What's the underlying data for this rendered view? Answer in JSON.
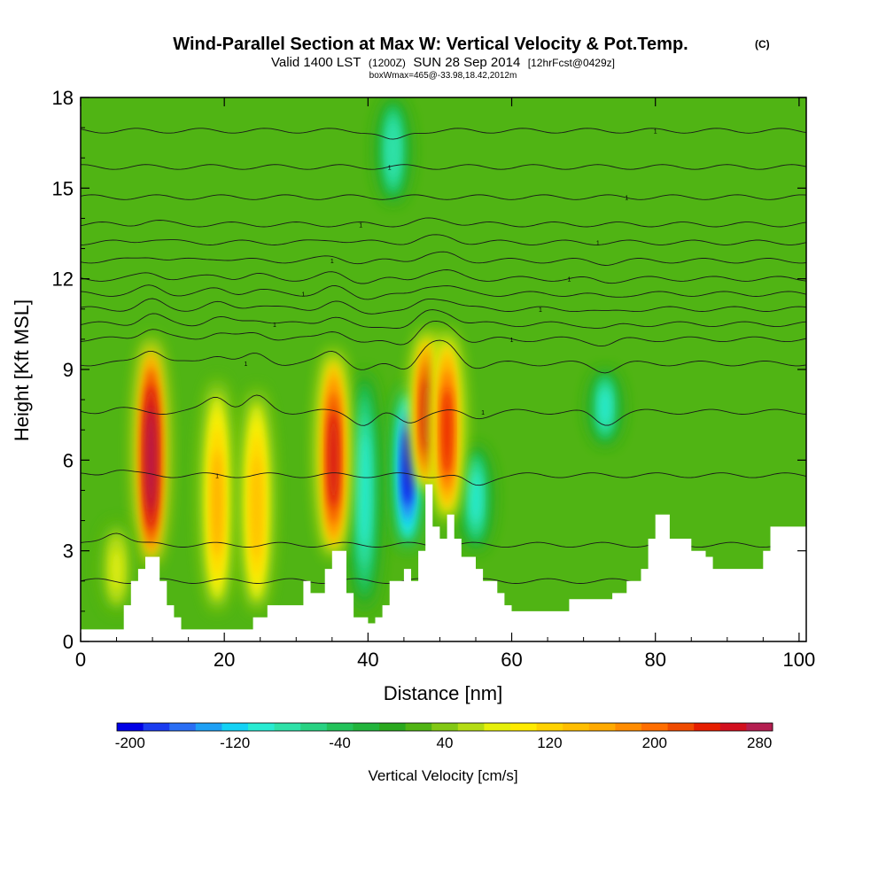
{
  "chart_data": {
    "type": "heatmap",
    "title": "Wind-Parallel Section at Max W: Vertical Velocity & Pot.Temp.",
    "title_mark": "(C)",
    "subtitle_main": "Valid 1400 LST",
    "subtitle_utc": "(1200Z)",
    "subtitle_date": "SUN 28 Sep 2014",
    "subtitle_fcst": "[12hrFcst@0429z]",
    "subtitle2": "boxWmax=465@-33.98,18.42,2012m",
    "xlabel": "Distance [nm]",
    "ylabel": "Height [Kft MSL]",
    "xlim": [
      0,
      101
    ],
    "ylim": [
      0,
      18
    ],
    "x_ticks": [
      0,
      20,
      40,
      60,
      80,
      100
    ],
    "y_ticks": [
      0,
      3,
      6,
      9,
      12,
      15,
      18
    ],
    "x_tick_labels": [
      "0",
      "20",
      "40",
      "60",
      "80",
      "100"
    ],
    "y_tick_labels": [
      "0",
      "3",
      "6",
      "9",
      "12",
      "15",
      "18"
    ],
    "background_w": 15,
    "updraft_cores": [
      {
        "x": 9.8,
        "z_low": 2.5,
        "z_high": 10.2,
        "w": 320
      },
      {
        "x": 19.0,
        "z_low": 1.0,
        "z_high": 8.8,
        "w": 150
      },
      {
        "x": 24.5,
        "z_low": 1.0,
        "z_high": 8.5,
        "w": 130
      },
      {
        "x": 35.2,
        "z_low": 2.8,
        "z_high": 9.8,
        "w": 260
      },
      {
        "x": 48.2,
        "z_low": 5.0,
        "z_high": 10.4,
        "w": 250
      },
      {
        "x": 51.0,
        "z_low": 4.0,
        "z_high": 10.4,
        "w": 230
      },
      {
        "x": 5.0,
        "z_low": 1.0,
        "z_high": 4.0,
        "w": 70
      }
    ],
    "downdraft_cores": [
      {
        "x": 45.5,
        "z_low": 3.0,
        "z_high": 8.5,
        "w": -200
      },
      {
        "x": 39.5,
        "z_low": 1.0,
        "z_high": 9.0,
        "w": -110
      },
      {
        "x": 55.0,
        "z_low": 3.0,
        "z_high": 6.5,
        "w": -100
      },
      {
        "x": 73.0,
        "z_low": 6.5,
        "z_high": 9.0,
        "w": -100
      },
      {
        "x": 43.5,
        "z_low": 14.5,
        "z_high": 18.0,
        "w": -90
      }
    ],
    "terrain_profile": [
      [
        0,
        0.4
      ],
      [
        6,
        0.4
      ],
      [
        6,
        1.2
      ],
      [
        7,
        1.2
      ],
      [
        7,
        2.0
      ],
      [
        8,
        2.0
      ],
      [
        8,
        2.4
      ],
      [
        9,
        2.4
      ],
      [
        9,
        2.8
      ],
      [
        11,
        2.8
      ],
      [
        11,
        2.0
      ],
      [
        12,
        2.0
      ],
      [
        12,
        1.2
      ],
      [
        13,
        1.2
      ],
      [
        13,
        0.8
      ],
      [
        14,
        0.8
      ],
      [
        14,
        0.4
      ],
      [
        24,
        0.4
      ],
      [
        24,
        0.8
      ],
      [
        26,
        0.8
      ],
      [
        26,
        1.2
      ],
      [
        31,
        1.2
      ],
      [
        31,
        2.0
      ],
      [
        32,
        2.0
      ],
      [
        32,
        1.6
      ],
      [
        34,
        1.6
      ],
      [
        34,
        2.4
      ],
      [
        35,
        2.4
      ],
      [
        35,
        3.0
      ],
      [
        37,
        3.0
      ],
      [
        37,
        1.6
      ],
      [
        38,
        1.6
      ],
      [
        38,
        0.8
      ],
      [
        40,
        0.8
      ],
      [
        40,
        0.6
      ],
      [
        41,
        0.6
      ],
      [
        41,
        0.8
      ],
      [
        42,
        0.8
      ],
      [
        42,
        1.2
      ],
      [
        43,
        1.2
      ],
      [
        43,
        2.0
      ],
      [
        45,
        2.0
      ],
      [
        45,
        2.4
      ],
      [
        46,
        2.4
      ],
      [
        46,
        2.0
      ],
      [
        47,
        2.0
      ],
      [
        47,
        3.0
      ],
      [
        48,
        3.0
      ],
      [
        48,
        5.2
      ],
      [
        49,
        5.2
      ],
      [
        49,
        3.8
      ],
      [
        50,
        3.8
      ],
      [
        50,
        3.4
      ],
      [
        51,
        3.4
      ],
      [
        51,
        4.2
      ],
      [
        52,
        4.2
      ],
      [
        52,
        3.4
      ],
      [
        53,
        3.4
      ],
      [
        53,
        2.8
      ],
      [
        55,
        2.8
      ],
      [
        55,
        2.4
      ],
      [
        56,
        2.4
      ],
      [
        56,
        2.0
      ],
      [
        58,
        2.0
      ],
      [
        58,
        1.6
      ],
      [
        59,
        1.6
      ],
      [
        59,
        1.2
      ],
      [
        60,
        1.2
      ],
      [
        60,
        1.0
      ],
      [
        68,
        1.0
      ],
      [
        68,
        1.4
      ],
      [
        74,
        1.4
      ],
      [
        74,
        1.6
      ],
      [
        76,
        1.6
      ],
      [
        76,
        2.0
      ],
      [
        78,
        2.0
      ],
      [
        78,
        2.4
      ],
      [
        79,
        2.4
      ],
      [
        79,
        3.4
      ],
      [
        80,
        3.4
      ],
      [
        80,
        4.2
      ],
      [
        82,
        4.2
      ],
      [
        82,
        3.4
      ],
      [
        85,
        3.4
      ],
      [
        85,
        3.0
      ],
      [
        87,
        3.0
      ],
      [
        87,
        2.8
      ],
      [
        88,
        2.8
      ],
      [
        88,
        2.4
      ],
      [
        95,
        2.4
      ],
      [
        95,
        3.0
      ],
      [
        96,
        3.0
      ],
      [
        96,
        3.8
      ],
      [
        101,
        3.8
      ]
    ],
    "isentropes": [
      {
        "z": 2.0,
        "label": ""
      },
      {
        "z": 3.2,
        "label": ""
      },
      {
        "z": 5.5,
        "label": "1"
      },
      {
        "z": 7.6,
        "label": "1"
      },
      {
        "z": 9.2,
        "label": "1"
      },
      {
        "z": 10.0,
        "label": "1"
      },
      {
        "z": 10.5,
        "label": "1"
      },
      {
        "z": 11.0,
        "label": "1"
      },
      {
        "z": 11.5,
        "label": "1"
      },
      {
        "z": 12.0,
        "label": "1"
      },
      {
        "z": 12.6,
        "label": "1"
      },
      {
        "z": 13.2,
        "label": "1"
      },
      {
        "z": 13.8,
        "label": "1"
      },
      {
        "z": 14.7,
        "label": "1"
      },
      {
        "z": 15.7,
        "label": "1"
      },
      {
        "z": 16.9,
        "label": "1"
      }
    ],
    "colorbar": {
      "label": "Vertical Velocity [cm/s]",
      "min": -210,
      "step": 20,
      "colors": [
        "#0000e6",
        "#1a3cf0",
        "#2a6ef4",
        "#1ea0f5",
        "#14d2f5",
        "#28ebd2",
        "#2ee1a8",
        "#28d282",
        "#23c25a",
        "#22b43c",
        "#2aa81e",
        "#50b414",
        "#82c814",
        "#b4dc14",
        "#e6f00a",
        "#ffeb00",
        "#ffd200",
        "#ffbe00",
        "#ffaa00",
        "#ff8c00",
        "#ff6e00",
        "#f04b00",
        "#e61e00",
        "#d20f1e",
        "#b41e50"
      ],
      "tick_values": [
        -200,
        -120,
        -40,
        40,
        120,
        200,
        280
      ],
      "tick_labels": [
        "-200",
        "-120",
        "-40",
        "40",
        "120",
        "200",
        "280"
      ]
    }
  }
}
